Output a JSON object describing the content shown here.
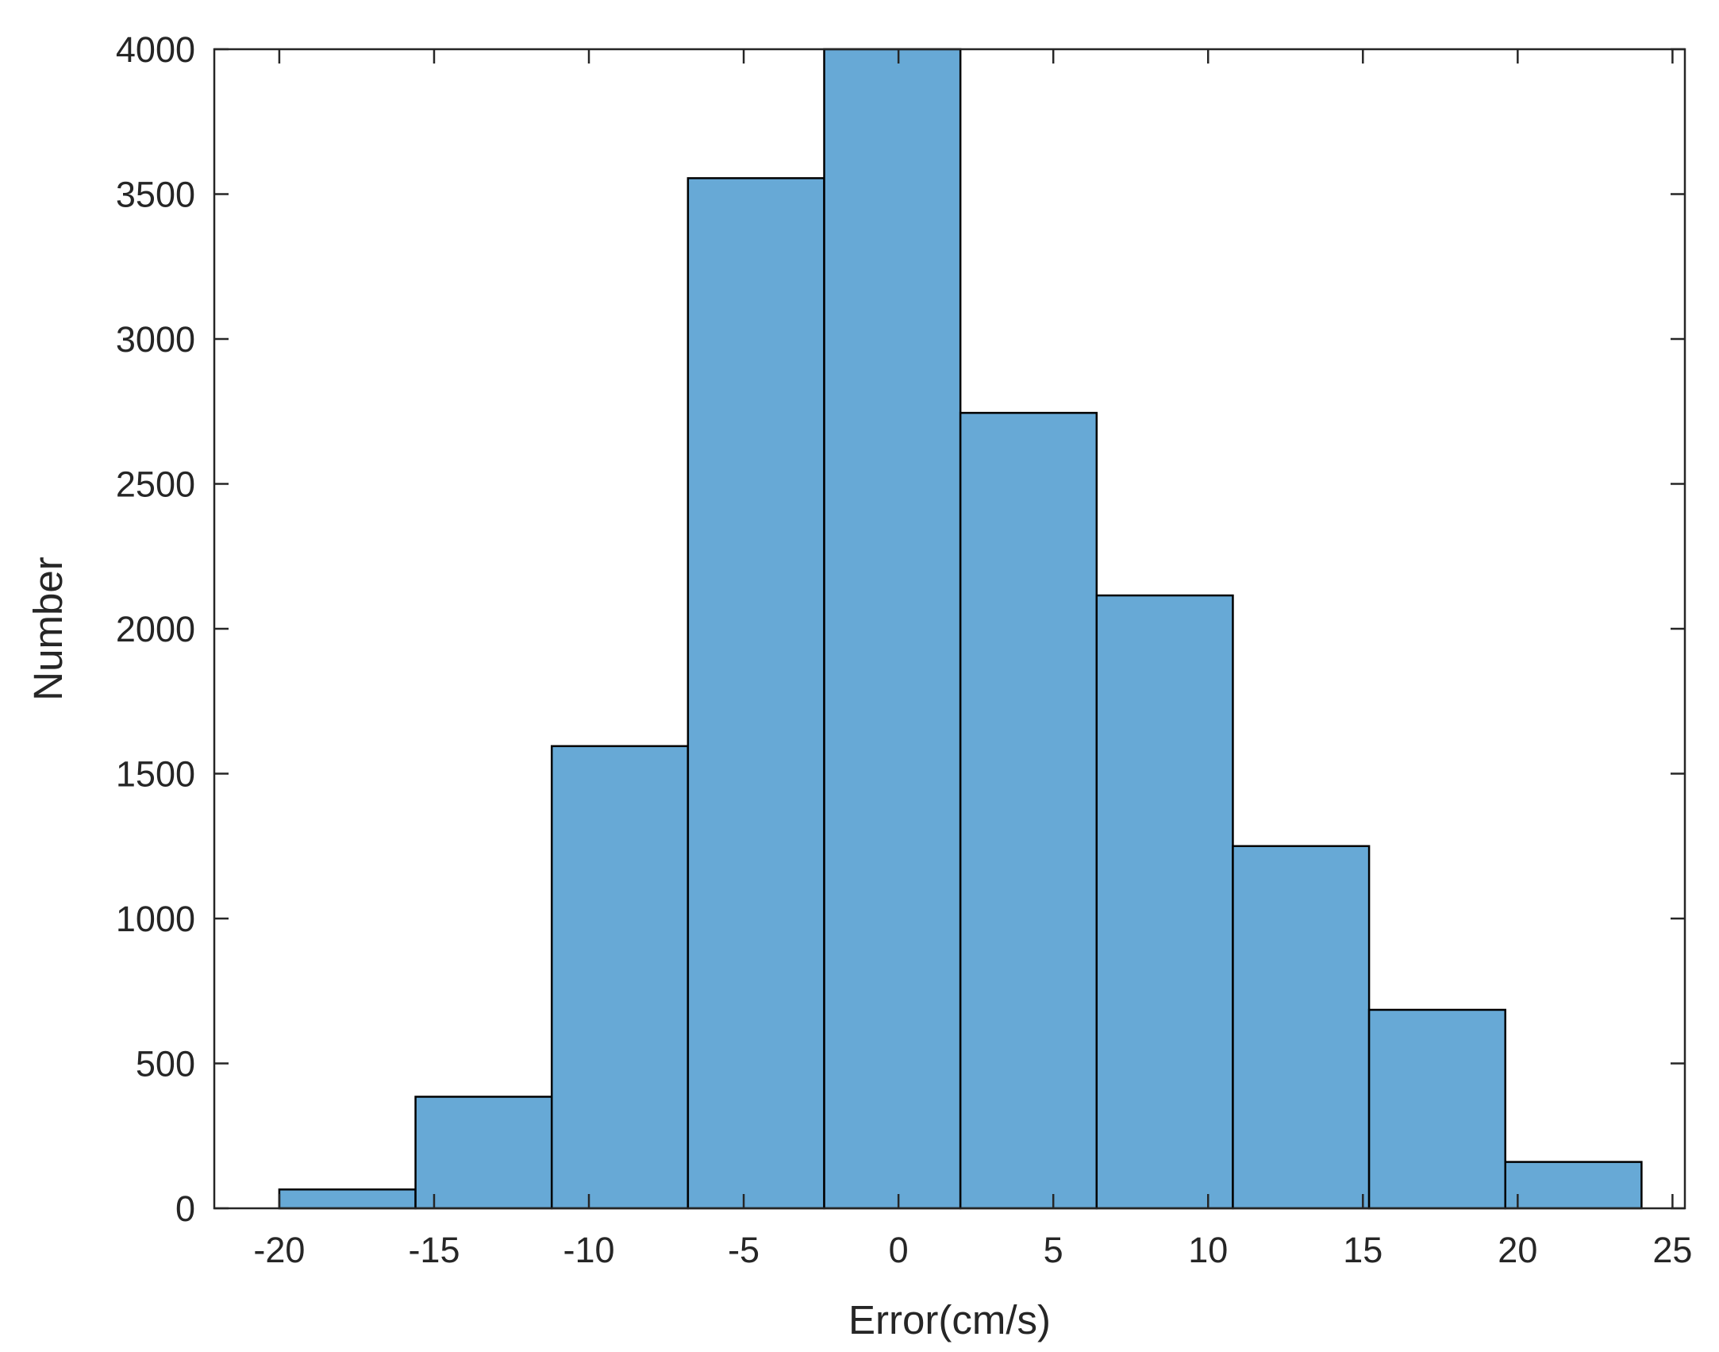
{
  "chart_data": {
    "type": "bar",
    "title": "",
    "xlabel": "Error(cm/s)",
    "ylabel": "Number",
    "xlim": [
      -22.1,
      25.4
    ],
    "ylim": [
      0,
      4000
    ],
    "xticks": [
      -20,
      -15,
      -10,
      -5,
      0,
      5,
      10,
      15,
      20,
      25
    ],
    "yticks": [
      0,
      500,
      1000,
      1500,
      2000,
      2500,
      3000,
      3500,
      4000
    ],
    "grid": false,
    "legend": "none",
    "colors": {
      "bar_fill": "#67a9d6",
      "bar_edge": "#000000",
      "axis": "#262626"
    },
    "bins": [
      {
        "x0": -20.0,
        "x1": -15.6,
        "value": 65
      },
      {
        "x0": -15.6,
        "x1": -11.2,
        "value": 385
      },
      {
        "x0": -11.2,
        "x1": -6.8,
        "value": 1595
      },
      {
        "x0": -6.8,
        "x1": -2.4,
        "value": 3555
      },
      {
        "x0": -2.4,
        "x1": 2.0,
        "value": 4000
      },
      {
        "x0": 2.0,
        "x1": 6.4,
        "value": 2745
      },
      {
        "x0": 6.4,
        "x1": 10.8,
        "value": 2115
      },
      {
        "x0": 10.8,
        "x1": 15.2,
        "value": 1250
      },
      {
        "x0": 15.2,
        "x1": 19.6,
        "value": 685
      },
      {
        "x0": 19.6,
        "x1": 24.0,
        "value": 160
      }
    ]
  }
}
